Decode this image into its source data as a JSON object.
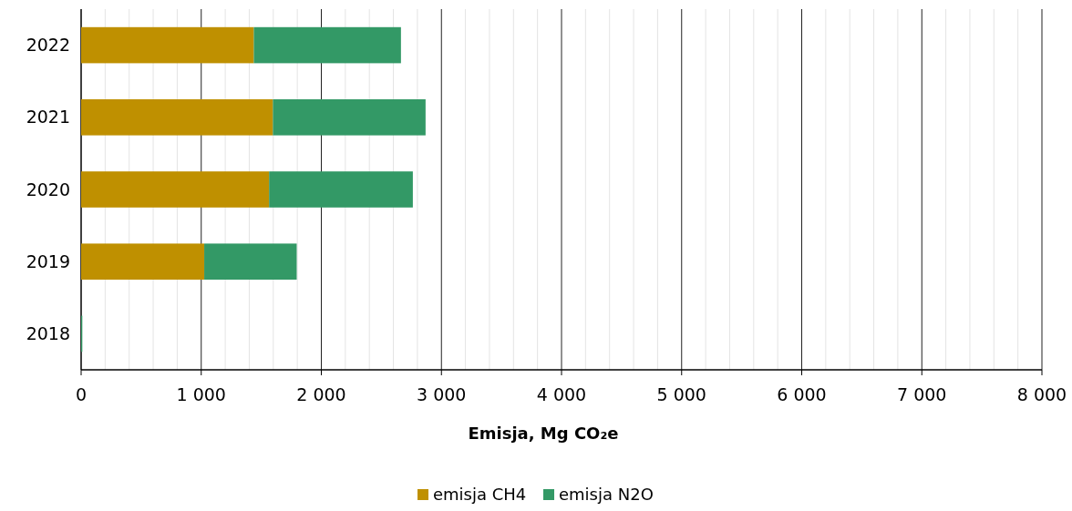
{
  "chart_data": {
    "type": "bar",
    "orientation": "horizontal",
    "stacked": true,
    "xlabel": "Emisja, Mg CO₂e",
    "categories": [
      "2022",
      "2021",
      "2020",
      "2019",
      "2018"
    ],
    "series": [
      {
        "name": "emisja CH4",
        "color": "#bf9000",
        "values": [
          1438,
          1597,
          1565,
          1025,
          0
        ]
      },
      {
        "name": "emisja N2O",
        "color": "#339966",
        "values": [
          1225,
          1271,
          1197,
          770,
          10
        ]
      }
    ],
    "xlim": [
      0,
      8000
    ],
    "xticks": [
      0,
      {
        "value": 200,
        "label": null
      },
      {
        "value": 400,
        "label": null
      },
      {
        "value": 600,
        "label": null
      },
      {
        "value": 800,
        "label": null
      },
      {
        "value": 1000,
        "label": "1 000"
      },
      {
        "value": 1200,
        "label": null
      },
      {
        "value": 1400,
        "label": null
      },
      {
        "value": 1600,
        "label": null
      },
      {
        "value": 1800,
        "label": null
      },
      {
        "value": 2000,
        "label": "2 000"
      },
      {
        "value": 2200,
        "label": null
      },
      {
        "value": 2400,
        "label": null
      },
      {
        "value": 2600,
        "label": null
      },
      {
        "value": 2800,
        "label": null
      },
      {
        "value": 3000,
        "label": "3 000"
      },
      {
        "value": 3200,
        "label": null
      },
      {
        "value": 3400,
        "label": null
      },
      {
        "value": 3600,
        "label": null
      },
      {
        "value": 3800,
        "label": null
      },
      {
        "value": 4000,
        "label": "4 000"
      },
      {
        "value": 4200,
        "label": null
      },
      {
        "value": 4400,
        "label": null
      },
      {
        "value": 4600,
        "label": null
      },
      {
        "value": 4800,
        "label": null
      },
      {
        "value": 5000,
        "label": "5 000"
      },
      {
        "value": 5200,
        "label": null
      },
      {
        "value": 5400,
        "label": null
      },
      {
        "value": 5600,
        "label": null
      },
      {
        "value": 5800,
        "label": null
      },
      {
        "value": 6000,
        "label": "6 000"
      },
      {
        "value": 6200,
        "label": null
      },
      {
        "value": 6400,
        "label": null
      },
      {
        "value": 6600,
        "label": null
      },
      {
        "value": 6800,
        "label": null
      },
      {
        "value": 7000,
        "label": "7 000"
      },
      {
        "value": 7200,
        "label": null
      },
      {
        "value": 7400,
        "label": null
      },
      {
        "value": 7600,
        "label": null
      },
      {
        "value": 7800,
        "label": null
      },
      {
        "value": 8000,
        "label": "8 000"
      }
    ],
    "grid": "x",
    "legend": "bottom"
  }
}
